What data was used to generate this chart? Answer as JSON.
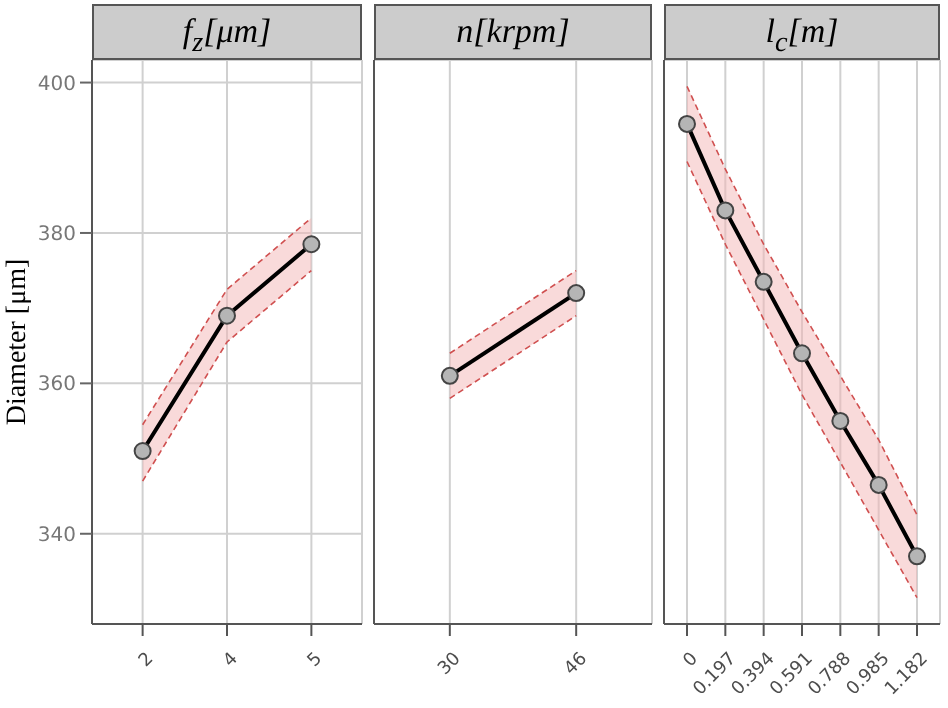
{
  "chart_data": [
    {
      "type": "line",
      "title": "f$_{z}$[μm]",
      "ylabel": "Diameter [μm]",
      "categories": [
        "2",
        "4",
        "5"
      ],
      "series": [
        {
          "color": "#000000",
          "values": [
            351,
            369,
            378.5
          ],
          "lower": [
            347,
            365.5,
            375
          ],
          "upper": [
            354.5,
            372.5,
            382
          ]
        },
        {
          "color": "#d05050",
          "values": [
            347,
            365.5,
            375
          ],
          "line_style": "dashed",
          "marker": "none"
        },
        {
          "color": "#d05050",
          "values": [
            354.5,
            372.5,
            382
          ],
          "line_style": "dashed",
          "marker": "none"
        }
      ],
      "ylim": [
        328,
        403
      ],
      "yticks": [
        340,
        360,
        380,
        400
      ],
      "grid": true,
      "marker": "circle",
      "line_style": "solid"
    },
    {
      "type": "line",
      "title": "n[krpm]",
      "categories": [
        "30",
        "46"
      ],
      "series": [
        {
          "color": "#000000",
          "values": [
            361,
            372
          ],
          "lower": [
            358,
            369
          ],
          "upper": [
            364,
            375
          ]
        },
        {
          "color": "#d05050",
          "values": [
            358,
            369
          ],
          "line_style": "dashed",
          "marker": "none"
        },
        {
          "color": "#d05050",
          "values": [
            364,
            375
          ],
          "line_style": "dashed",
          "marker": "none"
        }
      ],
      "ylim": [
        328,
        403
      ],
      "yticks": [
        340,
        360,
        380,
        400
      ],
      "tick_labels": "x",
      "grid": true,
      "marker": "circle",
      "line_style": "solid"
    },
    {
      "type": "line",
      "title": "l$_{c}$[m]",
      "categories": [
        "0",
        "0.197",
        "0.394",
        "0.591",
        "0.788",
        "0.985",
        "1.182"
      ],
      "series": [
        {
          "color": "#000000",
          "values": [
            394.5,
            383,
            373.5,
            364,
            355,
            346.5,
            337
          ],
          "lower": [
            389.5,
            378.5,
            368.5,
            358.5,
            349.5,
            340.5,
            331.5
          ],
          "upper": [
            399.5,
            388.5,
            378.5,
            369.5,
            361,
            352.5,
            342.5
          ]
        },
        {
          "color": "#d05050",
          "values": [
            389.5,
            378.5,
            368.5,
            358.5,
            349.5,
            340.5,
            331.5
          ],
          "line_style": "dashed",
          "marker": "none"
        },
        {
          "color": "#d05050",
          "values": [
            399.5,
            388.5,
            378.5,
            369.5,
            361,
            352.5,
            342.5
          ],
          "line_style": "dashed",
          "marker": "none"
        }
      ],
      "ylim": [
        328,
        403
      ],
      "yticks": [
        340,
        360,
        380,
        400
      ],
      "tick_labels": "x",
      "grid": true,
      "marker": "circle",
      "line_style": "solid"
    }
  ]
}
